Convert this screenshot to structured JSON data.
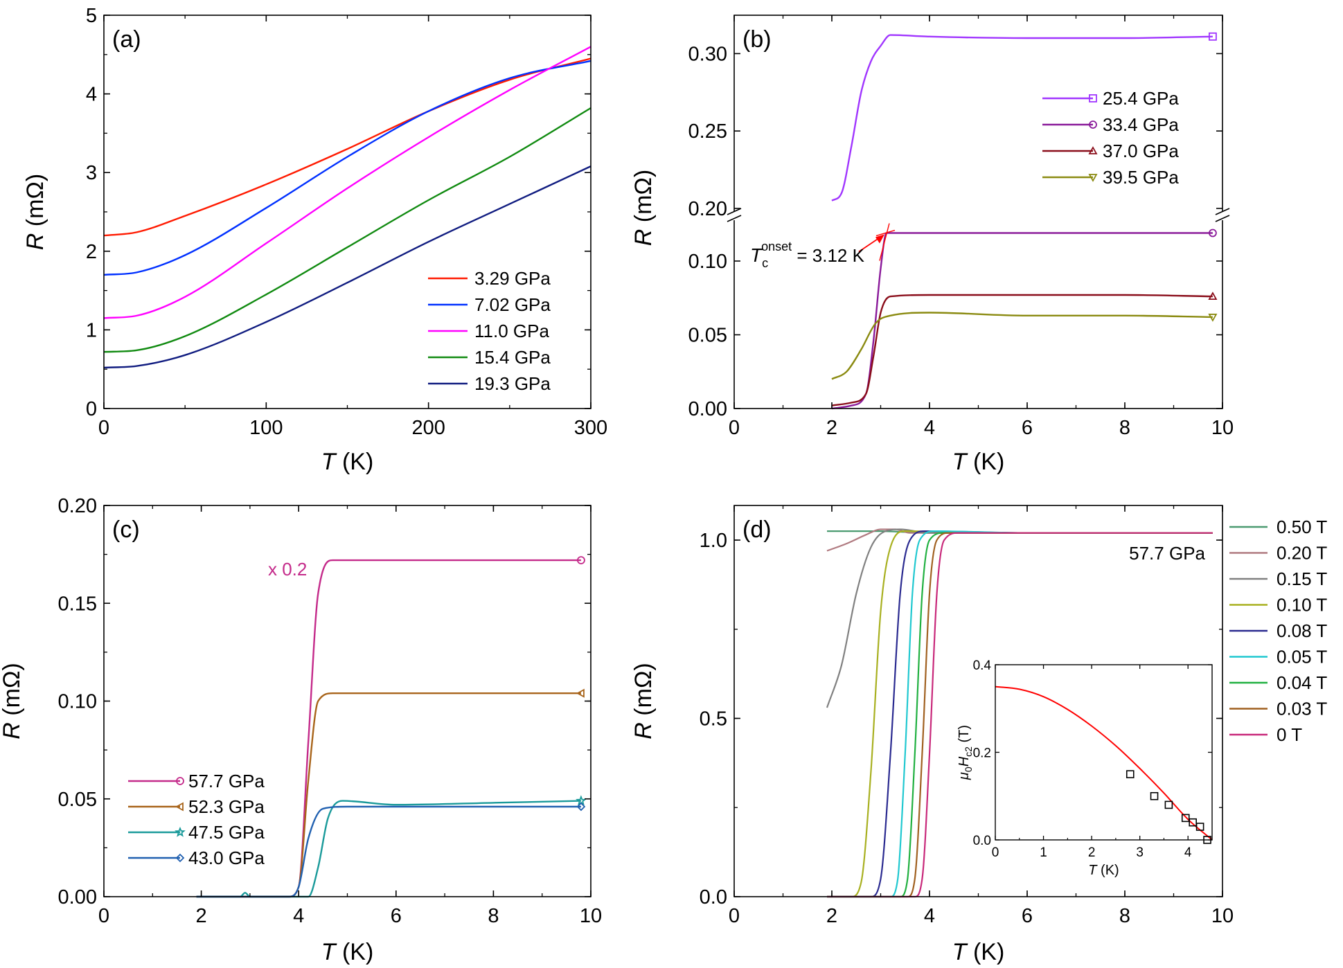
{
  "chart_data": [
    {
      "type": "line",
      "panel_label": "(a)",
      "xlabel_italic": "T",
      "xlabel_rest": " (K)",
      "ylabel_italic": "R",
      "ylabel_rest": " (mΩ)",
      "xlim": [
        0,
        300
      ],
      "ylim": [
        0,
        5
      ],
      "xticks": [
        0,
        100,
        200,
        300
      ],
      "yticks": [
        0,
        1,
        2,
        3,
        4,
        5
      ],
      "legend_position": "bottom-right",
      "series": [
        {
          "name": "3.29 GPa",
          "color": "#ff1a00",
          "x": [
            0,
            20,
            50,
            100,
            150,
            200,
            250,
            300
          ],
          "y": [
            2.2,
            2.24,
            2.45,
            2.85,
            3.3,
            3.78,
            4.18,
            4.45
          ]
        },
        {
          "name": "7.02 GPa",
          "color": "#0030ff",
          "x": [
            0,
            20,
            50,
            100,
            150,
            200,
            250,
            300
          ],
          "y": [
            1.7,
            1.73,
            1.95,
            2.55,
            3.2,
            3.78,
            4.2,
            4.42
          ]
        },
        {
          "name": "11.0 GPa",
          "color": "#ff00ff",
          "x": [
            0,
            20,
            50,
            100,
            150,
            200,
            250,
            300
          ],
          "y": [
            1.15,
            1.18,
            1.42,
            2.1,
            2.8,
            3.45,
            4.05,
            4.6
          ]
        },
        {
          "name": "15.4 GPa",
          "color": "#108a10",
          "x": [
            0,
            20,
            50,
            100,
            150,
            200,
            250,
            300
          ],
          "y": [
            0.72,
            0.74,
            0.92,
            1.45,
            2.05,
            2.65,
            3.2,
            3.82
          ]
        },
        {
          "name": "19.3 GPa",
          "color": "#101c80",
          "x": [
            0,
            20,
            50,
            100,
            150,
            200,
            250,
            300
          ],
          "y": [
            0.52,
            0.54,
            0.68,
            1.1,
            1.6,
            2.12,
            2.6,
            3.08
          ]
        }
      ]
    },
    {
      "type": "line",
      "panel_label": "(b)",
      "xlabel_italic": "T",
      "xlabel_rest": " (K)",
      "ylabel_italic": "R",
      "ylabel_rest": " (mΩ)",
      "xlim": [
        0,
        10
      ],
      "y_axis_break": true,
      "ylim_lower": [
        0,
        0.12
      ],
      "ylim_upper": [
        0.2,
        0.32
      ],
      "yticks_lower": [
        "0.00",
        "0.05",
        "0.10"
      ],
      "yticks_upper": [
        "0.20",
        "0.25",
        "0.30"
      ],
      "xticks": [
        0,
        2,
        4,
        6,
        8,
        10
      ],
      "legend_position": "top-right",
      "annotation_symbol": "T",
      "annotation_sub": "c",
      "annotation_sup": "onset",
      "annotation_value": " = 3.12 K",
      "series": [
        {
          "name": "25.4 GPa",
          "color": "#a035ff",
          "marker": "square",
          "x": [
            2.0,
            2.2,
            2.4,
            2.6,
            2.8,
            3.0,
            3.2,
            4.0,
            6.0,
            8.0,
            9.8
          ],
          "y": [
            0.205,
            0.21,
            0.24,
            0.275,
            0.295,
            0.305,
            0.312,
            0.311,
            0.31,
            0.31,
            0.311
          ]
        },
        {
          "name": "33.4 GPa",
          "color": "#8a1a9a",
          "marker": "circle",
          "x": [
            2.0,
            2.4,
            2.7,
            2.85,
            3.0,
            3.12,
            3.2,
            4.0,
            6.0,
            8.0,
            9.8
          ],
          "y": [
            0.0,
            0.002,
            0.01,
            0.045,
            0.095,
            0.119,
            0.119,
            0.119,
            0.119,
            0.119,
            0.119
          ]
        },
        {
          "name": "37.0 GPa",
          "color": "#8a0d1a",
          "marker": "triangle-up",
          "x": [
            2.0,
            2.4,
            2.7,
            2.85,
            3.0,
            3.2,
            4.0,
            6.0,
            8.0,
            9.8
          ],
          "y": [
            0.002,
            0.004,
            0.01,
            0.035,
            0.065,
            0.076,
            0.077,
            0.077,
            0.077,
            0.076
          ]
        },
        {
          "name": "39.5 GPa",
          "color": "#8a8a10",
          "marker": "triangle-down",
          "x": [
            2.0,
            2.3,
            2.6,
            2.9,
            3.2,
            4.0,
            6.0,
            8.0,
            9.8
          ],
          "y": [
            0.02,
            0.025,
            0.04,
            0.058,
            0.063,
            0.065,
            0.063,
            0.063,
            0.062
          ]
        }
      ]
    },
    {
      "type": "line",
      "panel_label": "(c)",
      "xlabel_italic": "T",
      "xlabel_rest": " (K)",
      "ylabel_italic": "R",
      "ylabel_rest": " (mΩ)",
      "xlim": [
        0,
        10
      ],
      "ylim": [
        0,
        0.2
      ],
      "xticks": [
        0,
        2,
        4,
        6,
        8,
        10
      ],
      "yticks": [
        "0.00",
        "0.05",
        "0.10",
        "0.15",
        "0.20"
      ],
      "legend_position": "bottom-left",
      "annotation": "x 0.2",
      "series": [
        {
          "name": "57.7 GPa",
          "color": "#c42a8a",
          "marker": "circle",
          "x": [
            1.9,
            3.8,
            4.0,
            4.2,
            4.4,
            4.7,
            6.0,
            8.0,
            9.8
          ],
          "y": [
            0.0,
            0.0,
            0.005,
            0.08,
            0.155,
            0.172,
            0.172,
            0.172,
            0.172
          ]
        },
        {
          "name": "52.3 GPa",
          "color": "#a8641a",
          "marker": "triangle-left",
          "x": [
            1.9,
            3.8,
            4.0,
            4.2,
            4.4,
            4.7,
            6.0,
            8.0,
            9.8
          ],
          "y": [
            0.0,
            0.0,
            0.005,
            0.06,
            0.1,
            0.104,
            0.104,
            0.104,
            0.104
          ]
        },
        {
          "name": "47.5 GPa",
          "color": "#1a9a9a",
          "marker": "star",
          "x": [
            1.9,
            2.8,
            2.9,
            3.0,
            4.2,
            4.4,
            4.6,
            4.9,
            6.0,
            8.0,
            9.8
          ],
          "y": [
            0.0,
            0.0,
            0.002,
            0.0,
            0.0,
            0.015,
            0.04,
            0.049,
            0.047,
            0.048,
            0.049
          ]
        },
        {
          "name": "43.0 GPa",
          "color": "#2060b0",
          "marker": "diamond",
          "x": [
            1.9,
            3.8,
            4.0,
            4.2,
            4.5,
            5.0,
            6.0,
            8.0,
            9.8
          ],
          "y": [
            0.0,
            0.0,
            0.005,
            0.03,
            0.045,
            0.046,
            0.046,
            0.046,
            0.046
          ]
        }
      ]
    },
    {
      "type": "line",
      "panel_label": "(d)",
      "xlabel_italic": "T",
      "xlabel_rest": " (K)",
      "ylabel_italic": "R",
      "ylabel_rest": " (mΩ)",
      "xlim": [
        0,
        10
      ],
      "ylim": [
        0,
        1.1
      ],
      "xticks": [
        0,
        2,
        4,
        6,
        8,
        10
      ],
      "yticks": [
        "0.0",
        "0.5",
        "1.0"
      ],
      "legend_position": "outside-right",
      "annotation": "57.7 GPa",
      "series": [
        {
          "name": "0.50 T",
          "color": "#4a9a70",
          "x": [
            1.9,
            3.0,
            4.0,
            6.0,
            9.8
          ],
          "y": [
            1.025,
            1.025,
            1.02,
            1.02,
            1.02
          ]
        },
        {
          "name": "0.20 T",
          "color": "#b07a80",
          "x": [
            1.9,
            2.3,
            2.7,
            3.0,
            3.3,
            3.6,
            4.0,
            6.0,
            9.8
          ],
          "y": [
            0.97,
            0.99,
            1.015,
            1.03,
            1.03,
            1.02,
            1.02,
            1.02,
            1.02
          ]
        },
        {
          "name": "0.15 T",
          "color": "#808080",
          "x": [
            1.9,
            2.2,
            2.5,
            2.8,
            3.1,
            3.4,
            4.0,
            6.0,
            9.8
          ],
          "y": [
            0.53,
            0.65,
            0.85,
            0.98,
            1.025,
            1.03,
            1.02,
            1.02,
            1.02
          ]
        },
        {
          "name": "0.10 T",
          "color": "#a8b020",
          "x": [
            1.9,
            2.4,
            2.6,
            2.8,
            3.0,
            3.2,
            3.5,
            6.0,
            9.8
          ],
          "y": [
            0.0,
            0.0,
            0.04,
            0.35,
            0.8,
            0.98,
            1.025,
            1.02,
            1.02
          ]
        },
        {
          "name": "0.08 T",
          "color": "#2a2a90",
          "x": [
            1.9,
            2.8,
            3.0,
            3.2,
            3.4,
            3.6,
            3.9,
            6.0,
            9.8
          ],
          "y": [
            0.0,
            0.0,
            0.05,
            0.4,
            0.85,
            1.0,
            1.025,
            1.02,
            1.02
          ]
        },
        {
          "name": "0.05 T",
          "color": "#20c8d0",
          "x": [
            1.9,
            3.2,
            3.35,
            3.5,
            3.65,
            3.8,
            4.1,
            6.0,
            9.8
          ],
          "y": [
            0.0,
            0.0,
            0.05,
            0.4,
            0.85,
            1.0,
            1.025,
            1.02,
            1.02
          ]
        },
        {
          "name": "0.04 T",
          "color": "#20b040",
          "x": [
            1.9,
            3.4,
            3.55,
            3.7,
            3.85,
            4.0,
            4.3,
            6.0,
            9.8
          ],
          "y": [
            0.0,
            0.0,
            0.05,
            0.4,
            0.85,
            1.0,
            1.02,
            1.02,
            1.02
          ]
        },
        {
          "name": "0.03 T",
          "color": "#a06020",
          "x": [
            1.9,
            3.55,
            3.7,
            3.85,
            4.0,
            4.15,
            4.4,
            6.0,
            9.8
          ],
          "y": [
            0.0,
            0.0,
            0.05,
            0.4,
            0.85,
            1.0,
            1.02,
            1.02,
            1.02
          ]
        },
        {
          "name": "0 T",
          "color": "#c8287a",
          "x": [
            1.9,
            3.7,
            3.85,
            4.0,
            4.15,
            4.3,
            4.6,
            6.0,
            9.8
          ],
          "y": [
            0.0,
            0.0,
            0.05,
            0.4,
            0.85,
            1.0,
            1.02,
            1.02,
            1.02
          ]
        }
      ],
      "inset": {
        "type": "scatter+line",
        "xlabel_italic": "T",
        "xlabel_rest": " (K)",
        "ylabel_mu": "μ",
        "ylabel_mu_sub": "0",
        "ylabel_h": "H",
        "ylabel_h_sub": "c2",
        "ylabel_rest": " (T)",
        "xlim": [
          0,
          4.5
        ],
        "ylim": [
          0,
          0.4
        ],
        "xticks": [
          0,
          1,
          2,
          3,
          4
        ],
        "yticks": [
          "0.0",
          "0.2",
          "0.4"
        ],
        "points": {
          "x": [
            2.8,
            3.3,
            3.6,
            3.95,
            4.1,
            4.25,
            4.4
          ],
          "y": [
            0.15,
            0.1,
            0.08,
            0.05,
            0.04,
            0.03,
            0.0
          ]
        },
        "fit": {
          "color": "#ff0000",
          "x": [
            0,
            0.5,
            1.0,
            1.5,
            2.0,
            2.5,
            3.0,
            3.5,
            4.0,
            4.5
          ],
          "y": [
            0.35,
            0.344,
            0.327,
            0.298,
            0.26,
            0.215,
            0.163,
            0.107,
            0.047,
            0.0
          ]
        }
      }
    }
  ]
}
